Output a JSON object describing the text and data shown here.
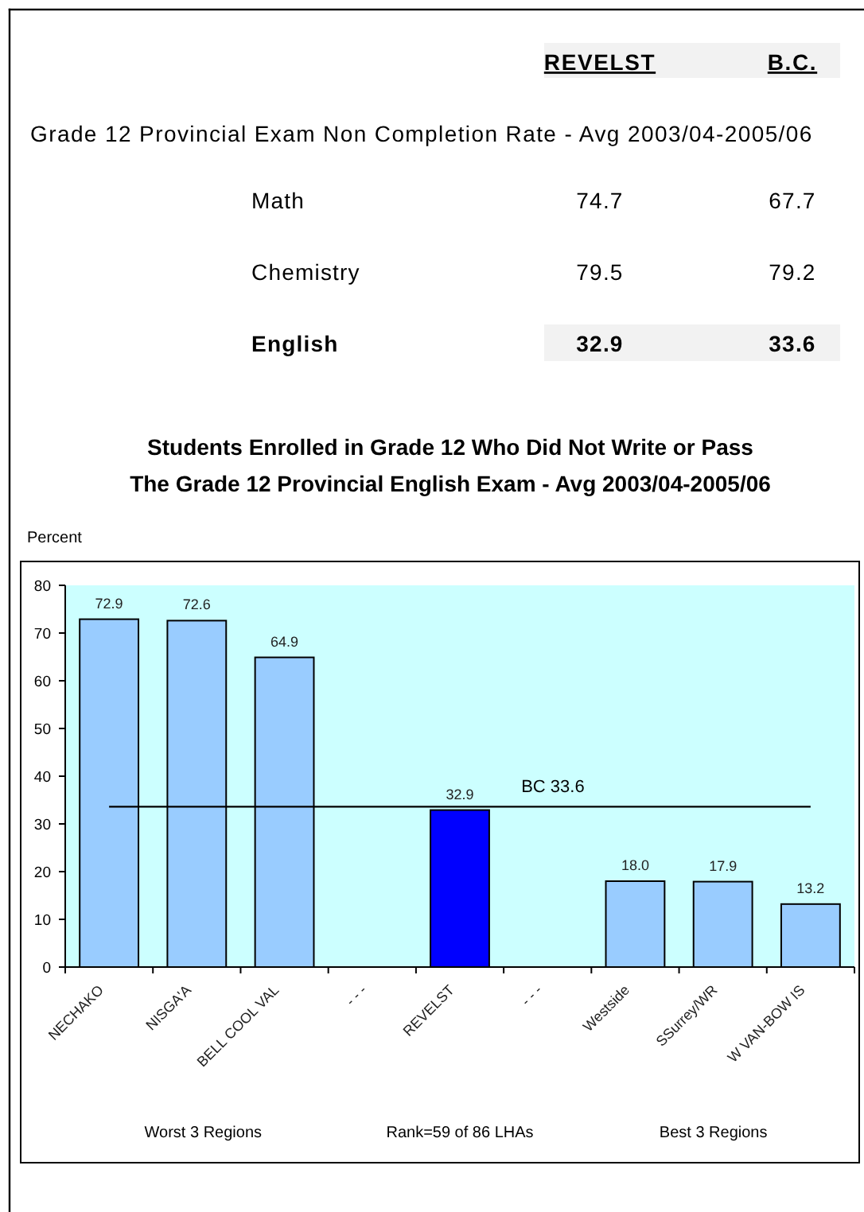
{
  "chart_data": [
    {
      "type": "other",
      "title": "Grade 12 Provincial Exam Non Completion Rate - Avg 2003/04-2005/06",
      "categories": [
        "Math",
        "Chemistry",
        "English"
      ],
      "series": [
        {
          "name": "REVELST",
          "values": [
            74.7,
            79.5,
            32.9
          ]
        },
        {
          "name": "B.C.",
          "values": [
            67.7,
            79.2,
            33.6
          ]
        }
      ],
      "data_labels": true
    },
    {
      "type": "bar",
      "title": "Students Enrolled in Grade 12 Who Did Not Write or Pass\nThe Grade 12 Provincial English Exam - Avg 2003/04-2005/06",
      "ylabel": "Percent",
      "categories": [
        "NECHAKO",
        "NISGA'A",
        "BELL COOL VAL",
        "- - -",
        "REVELST",
        "- - -",
        "Westside",
        "SSurrey/WR",
        "W VAN-BOW IS"
      ],
      "values": [
        72.9,
        72.6,
        64.9,
        null,
        32.9,
        null,
        18.0,
        17.9,
        13.2
      ],
      "colors": [
        "#99ccff",
        "#99ccff",
        "#99ccff",
        null,
        "#0000ff",
        null,
        "#99ccff",
        "#99ccff",
        "#99ccff"
      ],
      "value_labels": [
        "72.9",
        "72.6",
        "64.9",
        null,
        "32.9",
        null,
        "18.0",
        "17.9",
        "13.2"
      ],
      "ylim": [
        0,
        80
      ],
      "yticks": [
        0,
        10,
        20,
        30,
        40,
        50,
        60,
        70,
        80
      ],
      "ref_lines": [
        {
          "axis": "y",
          "value": 33.6,
          "label": "BC 33.6",
          "color": "#000000"
        }
      ],
      "annotations": [
        "Worst 3 Regions",
        "Rank=59 of 86 LHAs",
        "Best 3 Regions"
      ]
    }
  ]
}
